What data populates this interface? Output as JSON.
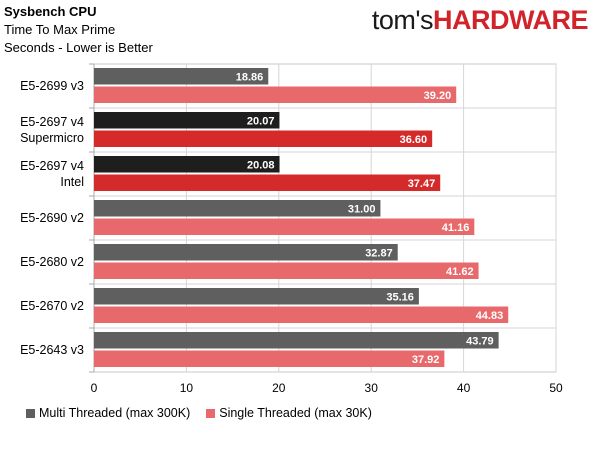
{
  "header": {
    "title": "Sysbench CPU",
    "subtitle1": "Time To Max Prime",
    "subtitle2": "Seconds - Lower is Better",
    "logo_part1": "tom's",
    "logo_part2": "HARDWARE"
  },
  "colors": {
    "multi": "#5f5f5f",
    "single": "#e8696b",
    "multi_highlight": "#1e1e1e",
    "single_highlight": "#d42a2a"
  },
  "chart_data": {
    "type": "bar",
    "orientation": "horizontal",
    "title": "Sysbench CPU",
    "subtitle": "Time To Max Prime / Seconds - Lower is Better",
    "categories": [
      [
        "E5-2699 v3"
      ],
      [
        "E5-2697 v4",
        "Supermicro"
      ],
      [
        "E5-2697 v4",
        "Intel"
      ],
      [
        "E5-2690 v2"
      ],
      [
        "E5-2680 v2"
      ],
      [
        "E5-2670 v2"
      ],
      [
        "E5-2643 v3"
      ]
    ],
    "highlighted_categories": [
      1,
      2
    ],
    "series": [
      {
        "name": "Multi Threaded (max 300K)",
        "values": [
          18.86,
          20.07,
          20.08,
          31.0,
          32.87,
          35.16,
          43.79
        ]
      },
      {
        "name": "Single Threaded (max 30K)",
        "values": [
          39.2,
          36.6,
          37.47,
          41.16,
          41.62,
          44.83,
          37.92
        ]
      }
    ],
    "value_labels": [
      [
        "18.86",
        "20.07",
        "20.08",
        "31.00",
        "32.87",
        "35.16",
        "43.79"
      ],
      [
        "39.20",
        "36.60",
        "37.47",
        "41.16",
        "41.62",
        "44.83",
        "37.92"
      ]
    ],
    "xlim": [
      0,
      50
    ],
    "xticks": [
      "0",
      "10",
      "20",
      "30",
      "40",
      "50"
    ],
    "grid": true,
    "legend_position": "bottom"
  }
}
